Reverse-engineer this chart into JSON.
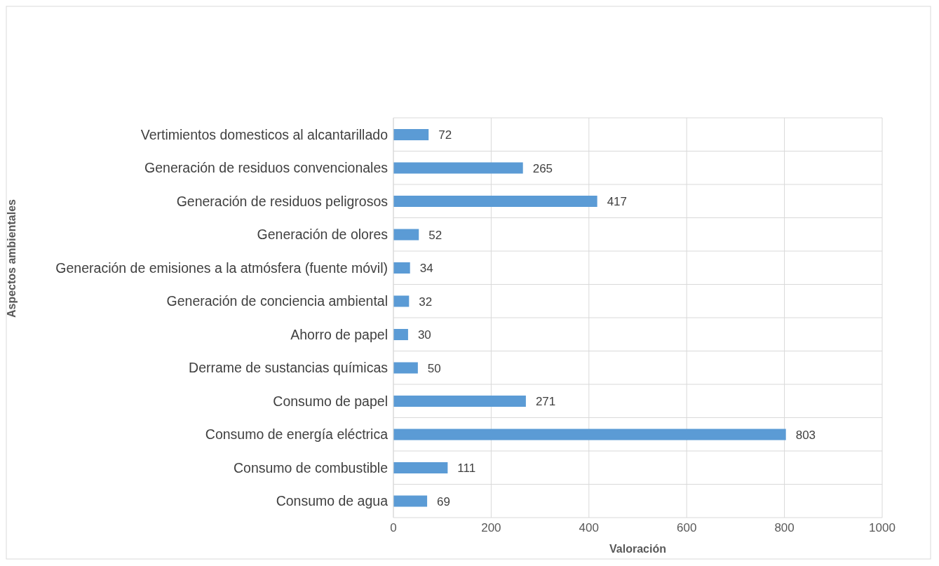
{
  "chart_data": {
    "type": "bar",
    "orientation": "horizontal",
    "xlabel": "Valoración",
    "ylabel": "Aspectos ambientales",
    "categories": [
      "Vertimientos domesticos al alcantarillado",
      "Generación de residuos convencionales",
      "Generación de residuos peligrosos",
      "Generación de olores",
      "Generación de emisiones a la atmósfera (fuente móvil)",
      "Generación de conciencia ambiental",
      "Ahorro de papel",
      "Derrame de sustancias químicas",
      "Consumo de papel",
      "Consumo de energía eléctrica",
      "Consumo de combustible",
      "Consumo de agua"
    ],
    "values": [
      72,
      265,
      417,
      52,
      34,
      32,
      30,
      50,
      271,
      803,
      111,
      69
    ],
    "color": "#5b9bd5",
    "xlim": [
      0,
      1000
    ],
    "xticks": [
      0,
      200,
      400,
      600,
      800,
      1000
    ],
    "grid": true,
    "data_labels": true
  }
}
